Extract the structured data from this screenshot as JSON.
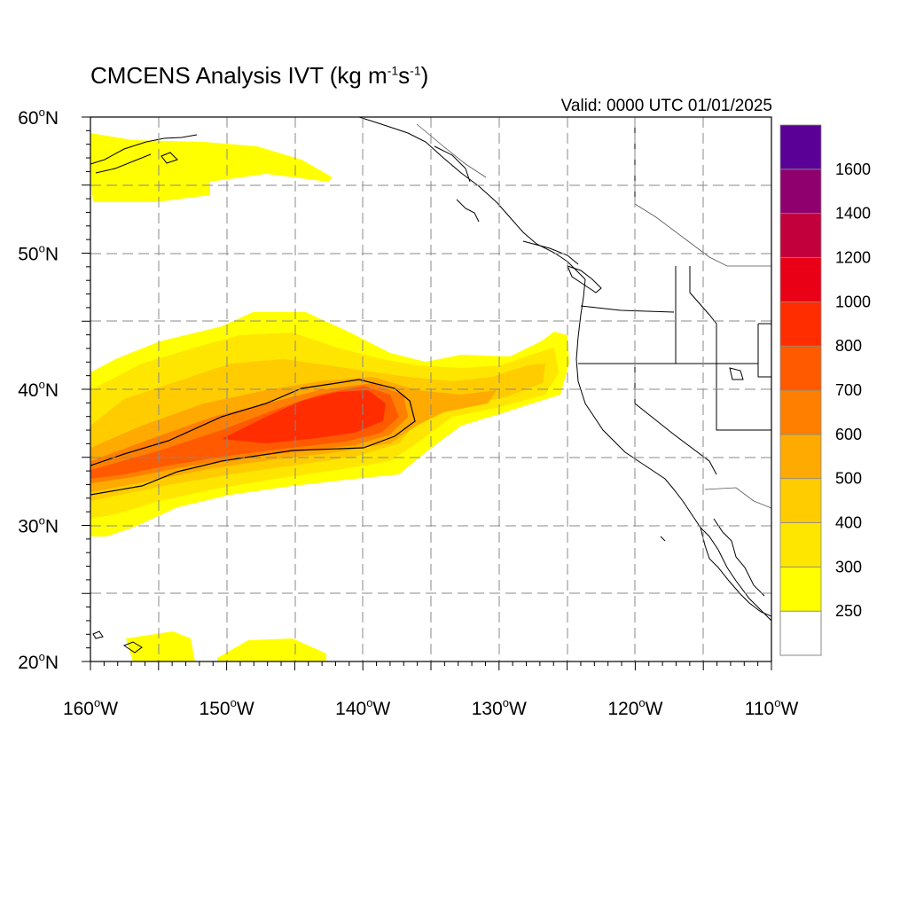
{
  "title_main": "CMCENS Analysis IVT (kg m",
  "title_sup1": "-1",
  "title_mid": "s",
  "title_sup2": "-1",
  "title_end": ")",
  "valid": "Valid: 0000 UTC 01/01/2025",
  "lat_labels": [
    {
      "deg": "60",
      "suffix": "N",
      "lat": 60
    },
    {
      "deg": "50",
      "suffix": "N",
      "lat": 50
    },
    {
      "deg": "40",
      "suffix": "N",
      "lat": 40
    },
    {
      "deg": "30",
      "suffix": "N",
      "lat": 30
    },
    {
      "deg": "20",
      "suffix": "N",
      "lat": 20
    }
  ],
  "lon_labels": [
    {
      "deg": "160",
      "suffix": "W",
      "lon": -160
    },
    {
      "deg": "150",
      "suffix": "W",
      "lon": -150
    },
    {
      "deg": "140",
      "suffix": "W",
      "lon": -140
    },
    {
      "deg": "130",
      "suffix": "W",
      "lon": -130
    },
    {
      "deg": "120",
      "suffix": "W",
      "lon": -120
    },
    {
      "deg": "110",
      "suffix": "W",
      "lon": -110
    }
  ],
  "colorbar": {
    "levels": [
      {
        "value": "250",
        "color": "#ffff00"
      },
      {
        "value": "300",
        "color": "#ffe600"
      },
      {
        "value": "400",
        "color": "#ffcc00"
      },
      {
        "value": "500",
        "color": "#ffaa00"
      },
      {
        "value": "600",
        "color": "#ff8000"
      },
      {
        "value": "700",
        "color": "#ff5a00"
      },
      {
        "value": "800",
        "color": "#ff2d00"
      },
      {
        "value": "1000",
        "color": "#ea0016"
      },
      {
        "value": "1200",
        "color": "#c2003c"
      },
      {
        "value": "1400",
        "color": "#8f006e"
      },
      {
        "value": "1600",
        "color": "#5a0096"
      }
    ],
    "below_color": "#ffffff"
  },
  "ivt_field": {
    "units": "kg m-1 s-1",
    "lon_range": [
      -160,
      -110
    ],
    "lat_range": [
      20,
      60
    ],
    "contour_level": 700,
    "main_river_core_lonlat": [
      -142,
      38.5
    ]
  }
}
